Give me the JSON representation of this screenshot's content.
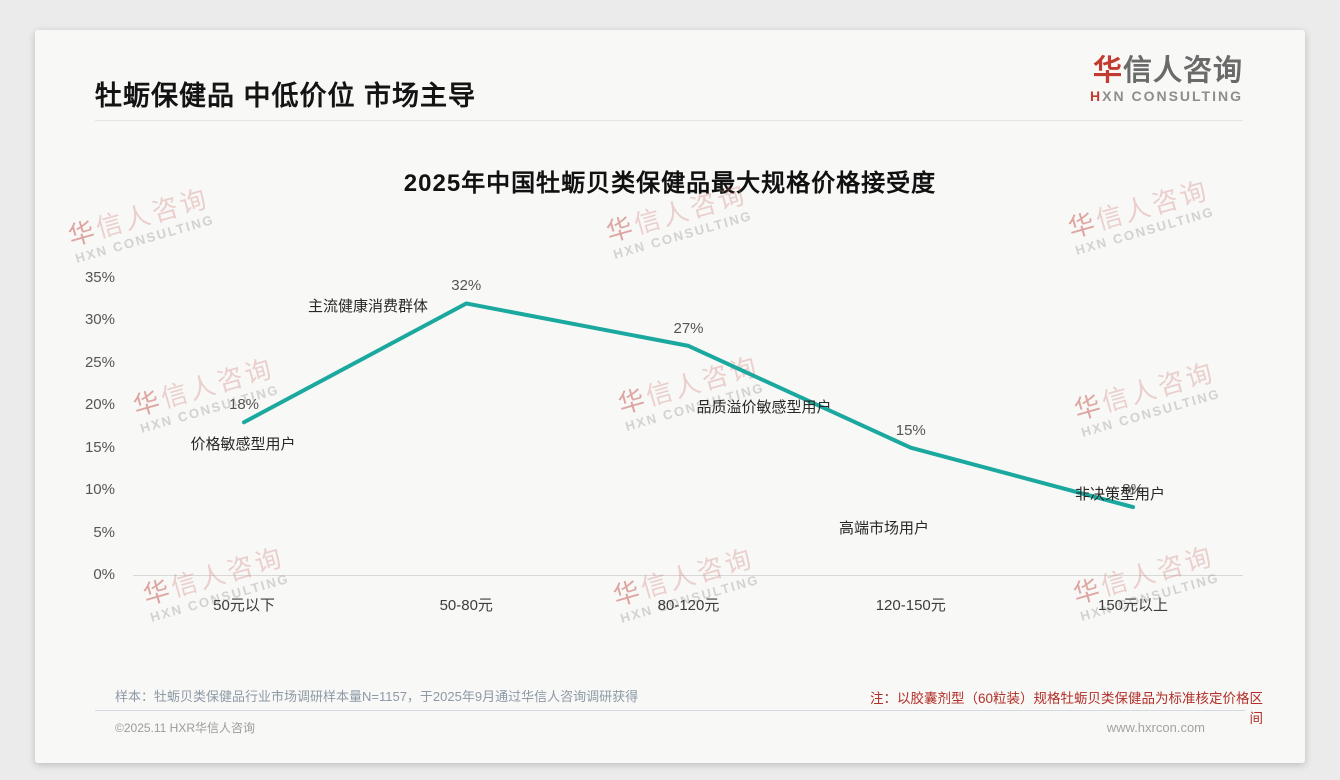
{
  "header": {
    "title": "牡蛎保健品 中低价位 市场主导",
    "logo": {
      "cn_first": "华",
      "cn_rest": "信人咨询",
      "en_first": "H",
      "en_rest": "XN CONSULTING"
    }
  },
  "chart_data": {
    "type": "line",
    "title": "2025年中国牡蛎贝类保健品最大规格价格接受度",
    "categories": [
      "50元以下",
      "50-80元",
      "80-120元",
      "120-150元",
      "150元以上"
    ],
    "values": [
      18,
      32,
      27,
      15,
      8
    ],
    "unit": "%",
    "yticks": [
      "35%",
      "30%",
      "25%",
      "20%",
      "15%",
      "10%",
      "5%",
      "0%"
    ],
    "ylim": [
      0,
      35
    ],
    "ytick_step": 5,
    "grid": false,
    "legend_position": "none",
    "line_color": "#1ba89e",
    "annotations": [
      "价格敏感型用户",
      "主流健康消费群体",
      "品质溢价敏感型用户",
      "高端市场用户",
      "非决策型用户"
    ]
  },
  "footer": {
    "sample_note": "样本：牡蛎贝类保健品行业市场调研样本量N=1157，于2025年9月通过华信人咨询调研获得",
    "price_note": "注：以胶囊剂型（60粒装）规格牡蛎贝类保健品为标准核定价格区间",
    "copyright": "©2025.11 HXR华信人咨询",
    "website": "www.hxrcon.com"
  },
  "watermark": {
    "line1": "华信人咨询",
    "line2": "HXN CONSULTING"
  },
  "colors": {
    "line": "#1ba89e",
    "accent_red": "#b23029"
  }
}
